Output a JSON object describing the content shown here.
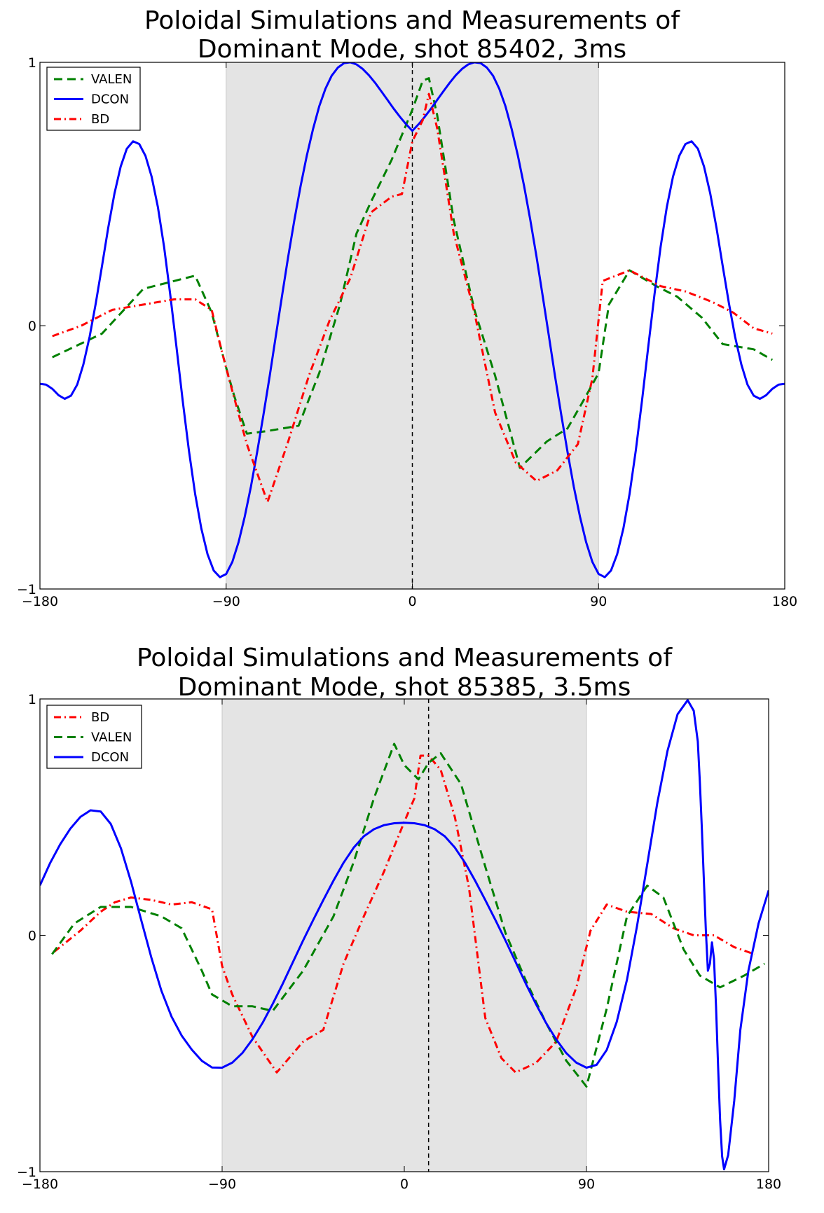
{
  "chart_data": [
    {
      "type": "line",
      "title_lines": [
        "Poloidal Simulations and Measurements of",
        "Dominant Mode, shot 85402, 3ms"
      ],
      "xlim": [
        -180,
        180
      ],
      "ylim": [
        -1,
        1
      ],
      "xticks": [
        -180,
        -90,
        0,
        90,
        180
      ],
      "xtick_labels": [
        "−180",
        "−90",
        "0",
        "90",
        "180"
      ],
      "yticks": [
        -1,
        0,
        1
      ],
      "ytick_labels": [
        "−1",
        "0",
        "1"
      ],
      "shaded_region": [
        -90,
        90
      ],
      "vline": 0,
      "grid": false,
      "legend_position": "top-left",
      "legend_order": [
        "VALEN",
        "DCON",
        "BD"
      ],
      "series": [
        {
          "name": "VALEN",
          "color": "#008000",
          "style": "dashed",
          "x": [
            -174,
            -150,
            -130,
            -105,
            -97,
            -90,
            -86,
            -80,
            -70,
            -55,
            -45,
            -35,
            -27,
            -20,
            -10,
            0,
            5,
            8,
            12,
            20,
            30,
            40,
            52,
            65,
            75,
            83,
            90,
            95,
            105,
            118,
            128,
            140,
            150,
            165,
            174
          ],
          "y": [
            -0.12,
            -0.03,
            0.14,
            0.19,
            0.05,
            -0.16,
            -0.27,
            -0.41,
            -0.4,
            -0.38,
            -0.18,
            0.08,
            0.35,
            0.47,
            0.63,
            0.82,
            0.93,
            0.94,
            0.8,
            0.4,
            0.06,
            -0.19,
            -0.54,
            -0.44,
            -0.39,
            -0.28,
            -0.18,
            0.08,
            0.21,
            0.15,
            0.11,
            0.03,
            -0.07,
            -0.09,
            -0.13
          ]
        },
        {
          "name": "DCON",
          "color": "#0000ff",
          "style": "solid",
          "x": [
            -180,
            -177,
            -174,
            -171,
            -168,
            -165,
            -162,
            -159,
            -156,
            -153,
            -150,
            -147,
            -144,
            -141,
            -138,
            -135,
            -132,
            -129,
            -126,
            -123,
            -120,
            -117,
            -114,
            -111,
            -108,
            -105,
            -102,
            -99,
            -96,
            -93,
            -90,
            -87,
            -84,
            -81,
            -78,
            -75,
            -72,
            -69,
            -66,
            -63,
            -60,
            -57,
            -54,
            -51,
            -48,
            -45,
            -42,
            -39,
            -36,
            -33,
            -30,
            -27,
            -24,
            -21,
            -18,
            -15,
            -12,
            -9,
            -6,
            -3,
            0,
            3,
            6,
            9,
            12,
            15,
            18,
            21,
            24,
            27,
            30,
            33,
            36,
            39,
            42,
            45,
            48,
            51,
            54,
            57,
            60,
            63,
            66,
            69,
            72,
            75,
            78,
            81,
            84,
            87,
            90,
            93,
            96,
            99,
            102,
            105,
            108,
            111,
            114,
            117,
            120,
            123,
            126,
            129,
            132,
            135,
            138,
            141,
            144,
            147,
            150,
            153,
            156,
            159,
            162,
            165,
            168,
            171,
            174,
            177,
            180
          ],
          "y": [
            -0.221,
            -0.224,
            -0.24,
            -0.264,
            -0.278,
            -0.266,
            -0.224,
            -0.147,
            -0.042,
            0.085,
            0.227,
            0.371,
            0.501,
            0.604,
            0.672,
            0.7,
            0.69,
            0.645,
            0.566,
            0.451,
            0.299,
            0.117,
            -0.082,
            -0.284,
            -0.474,
            -0.639,
            -0.77,
            -0.868,
            -0.93,
            -0.955,
            -0.943,
            -0.897,
            -0.822,
            -0.725,
            -0.61,
            -0.48,
            -0.34,
            -0.193,
            -0.04,
            0.113,
            0.262,
            0.402,
            0.53,
            0.646,
            0.747,
            0.833,
            0.9,
            0.949,
            0.98,
            0.997,
            1.0,
            0.992,
            0.975,
            0.951,
            0.922,
            0.89,
            0.857,
            0.824,
            0.793,
            0.765,
            0.74,
            0.765,
            0.793,
            0.824,
            0.857,
            0.89,
            0.922,
            0.951,
            0.975,
            0.992,
            1.0,
            0.997,
            0.98,
            0.949,
            0.9,
            0.833,
            0.747,
            0.646,
            0.53,
            0.402,
            0.262,
            0.113,
            -0.04,
            -0.193,
            -0.34,
            -0.48,
            -0.61,
            -0.725,
            -0.822,
            -0.897,
            -0.943,
            -0.955,
            -0.93,
            -0.868,
            -0.77,
            -0.639,
            -0.474,
            -0.284,
            -0.082,
            0.117,
            0.299,
            0.451,
            0.566,
            0.645,
            0.69,
            0.7,
            0.672,
            0.604,
            0.501,
            0.371,
            0.227,
            0.085,
            -0.042,
            -0.147,
            -0.224,
            -0.266,
            -0.278,
            -0.264,
            -0.24,
            -0.224,
            -0.221
          ]
        },
        {
          "name": "BD",
          "color": "#ff0000",
          "style": "dashdot",
          "x": [
            -174,
            -160,
            -145,
            -130,
            -115,
            -105,
            -97,
            -92,
            -88,
            -80,
            -70,
            -60,
            -50,
            -40,
            -30,
            -20,
            -10,
            -5,
            0,
            5,
            8,
            12,
            20,
            30,
            40,
            50,
            60,
            70,
            80,
            87,
            92,
            105,
            120,
            132,
            145,
            155,
            165,
            174
          ],
          "y": [
            -0.04,
            0.0,
            0.06,
            0.08,
            0.1,
            0.1,
            0.06,
            -0.1,
            -0.22,
            -0.45,
            -0.67,
            -0.44,
            -0.19,
            0.02,
            0.18,
            0.43,
            0.49,
            0.5,
            0.7,
            0.78,
            0.88,
            0.75,
            0.35,
            0.05,
            -0.33,
            -0.52,
            -0.59,
            -0.55,
            -0.45,
            -0.2,
            0.17,
            0.21,
            0.15,
            0.13,
            0.09,
            0.05,
            -0.01,
            -0.03
          ]
        }
      ]
    },
    {
      "type": "line",
      "title_lines": [
        "Poloidal Simulations and Measurements of",
        "Dominant Mode, shot 85385, 3.5ms"
      ],
      "xlim": [
        -180,
        180
      ],
      "ylim": [
        -1,
        1
      ],
      "xticks": [
        -180,
        -90,
        0,
        90,
        180
      ],
      "xtick_labels": [
        "−180",
        "−90",
        "0",
        "90",
        "180"
      ],
      "yticks": [
        -1,
        0,
        1
      ],
      "ytick_labels": [
        "−1",
        "0",
        "1"
      ],
      "shaded_region": [
        -90,
        90
      ],
      "vline": 12,
      "grid": false,
      "legend_position": "top-left",
      "legend_order": [
        "BD",
        "VALEN",
        "DCON"
      ],
      "series": [
        {
          "name": "BD",
          "color": "#ff0000",
          "style": "dashdot",
          "x": [
            -173,
            -160,
            -150,
            -143,
            -135,
            -125,
            -115,
            -105,
            -95,
            -90,
            -85,
            -75,
            -63,
            -50,
            -40,
            -30,
            -20,
            -10,
            0,
            5,
            8,
            12,
            18,
            25,
            32,
            40,
            48,
            55,
            65,
            75,
            85,
            92,
            100,
            110,
            122,
            133,
            143,
            153,
            163,
            173
          ],
          "y": [
            -0.07,
            0.02,
            0.1,
            0.14,
            0.16,
            0.15,
            0.13,
            0.14,
            0.11,
            -0.13,
            -0.25,
            -0.43,
            -0.58,
            -0.45,
            -0.4,
            -0.12,
            0.08,
            0.27,
            0.48,
            0.58,
            0.76,
            0.76,
            0.7,
            0.5,
            0.2,
            -0.35,
            -0.52,
            -0.58,
            -0.54,
            -0.45,
            -0.22,
            0.02,
            0.13,
            0.1,
            0.09,
            0.03,
            0.0,
            0.0,
            -0.05,
            -0.08
          ]
        },
        {
          "name": "VALEN",
          "color": "#008000",
          "style": "dashed",
          "x": [
            -174,
            -163,
            -150,
            -135,
            -120,
            -110,
            -100,
            -95,
            -85,
            -75,
            -65,
            -50,
            -35,
            -25,
            -15,
            -5,
            0,
            7,
            12,
            18,
            28,
            40,
            50,
            60,
            70,
            80,
            90,
            100,
            110,
            120,
            128,
            138,
            146,
            156,
            168,
            178
          ],
          "y": [
            -0.08,
            0.05,
            0.12,
            0.12,
            0.08,
            0.03,
            -0.15,
            -0.25,
            -0.3,
            -0.3,
            -0.32,
            -0.15,
            0.08,
            0.31,
            0.58,
            0.81,
            0.72,
            0.66,
            0.73,
            0.77,
            0.64,
            0.29,
            0.01,
            -0.19,
            -0.37,
            -0.53,
            -0.64,
            -0.31,
            0.08,
            0.21,
            0.16,
            -0.06,
            -0.17,
            -0.22,
            -0.17,
            -0.12
          ]
        },
        {
          "name": "DCON",
          "color": "#0000ff",
          "style": "solid",
          "x": [
            -180,
            -175,
            -170,
            -165,
            -160,
            -155,
            -150,
            -145,
            -140,
            -135,
            -130,
            -125,
            -120,
            -115,
            -110,
            -105,
            -100,
            -95,
            -90,
            -85,
            -80,
            -75,
            -70,
            -65,
            -60,
            -55,
            -50,
            -45,
            -40,
            -35,
            -30,
            -25,
            -20,
            -15,
            -10,
            -5,
            0,
            5,
            10,
            15,
            20,
            25,
            30,
            35,
            40,
            45,
            50,
            55,
            60,
            65,
            70,
            75,
            80,
            85,
            90,
            95,
            100,
            105,
            110,
            115,
            120,
            125,
            130,
            135,
            140,
            143,
            145,
            146,
            147,
            148,
            149,
            150,
            151,
            152,
            153,
            154,
            155,
            156,
            157,
            158,
            160,
            163,
            166,
            170,
            175,
            180
          ],
          "y": [
            0.211,
            0.305,
            0.385,
            0.451,
            0.501,
            0.529,
            0.524,
            0.471,
            0.368,
            0.227,
            0.066,
            -0.093,
            -0.234,
            -0.344,
            -0.424,
            -0.484,
            -0.531,
            -0.559,
            -0.56,
            -0.539,
            -0.498,
            -0.44,
            -0.37,
            -0.29,
            -0.204,
            -0.113,
            -0.022,
            0.065,
            0.149,
            0.231,
            0.307,
            0.371,
            0.419,
            0.449,
            0.466,
            0.474,
            0.476,
            0.474,
            0.466,
            0.449,
            0.419,
            0.371,
            0.307,
            0.231,
            0.149,
            0.065,
            -0.022,
            -0.113,
            -0.204,
            -0.29,
            -0.37,
            -0.44,
            -0.498,
            -0.539,
            -0.56,
            -0.548,
            -0.485,
            -0.365,
            -0.188,
            0.04,
            0.3,
            0.56,
            0.78,
            0.935,
            0.995,
            0.95,
            0.82,
            0.65,
            0.45,
            0.23,
            0.02,
            -0.15,
            -0.12,
            -0.03,
            -0.1,
            -0.3,
            -0.55,
            -0.78,
            -0.935,
            -0.99,
            -0.93,
            -0.7,
            -0.4,
            -0.15,
            0.05,
            0.19
          ]
        }
      ]
    }
  ]
}
